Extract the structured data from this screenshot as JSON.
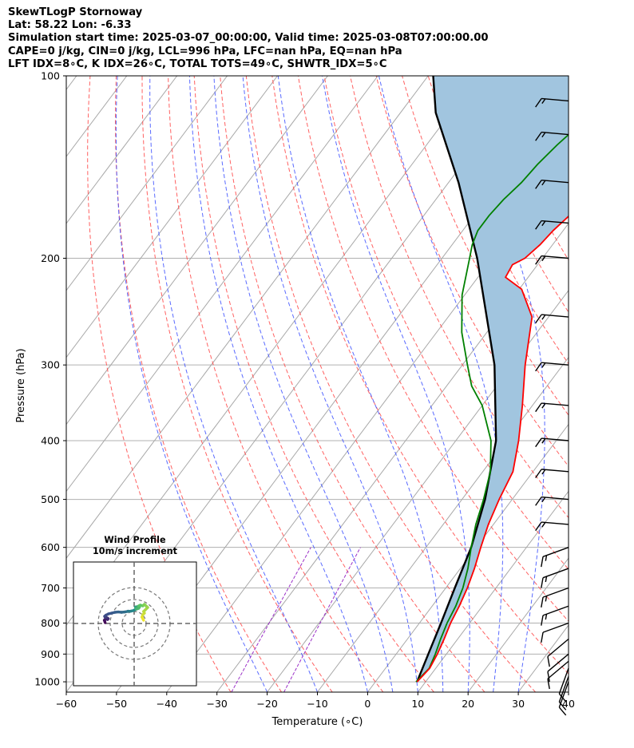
{
  "header": {
    "line1": "SkewTLogP Stornoway",
    "line2": "Lat: 58.22   Lon: -6.33",
    "line3": "Simulation start time: 2025-03-07_00:00:00, Valid time: 2025-03-08T07:00:00.00",
    "line4": "CAPE=0 j/kg, CIN=0 j/kg, LCL=996 hPa, LFC=nan hPa, EQ=nan hPa",
    "line5": "LFT IDX=8∘C, K IDX=26∘C, TOTAL TOTS=49∘C, SHWTR_IDX=5∘C"
  },
  "inset": {
    "title_line1": "Wind Profile",
    "title_line2": "10m/s increment"
  },
  "chart_data": [
    {
      "type": "line",
      "subtype": "skew-T log-P",
      "xlabel": "Temperature (∘C)",
      "ylabel": "Pressure (hPa)",
      "xlim": [
        -60,
        40
      ],
      "ylim": [
        1040,
        100
      ],
      "y_scale": "log",
      "xticks": [
        -60,
        -50,
        -40,
        -30,
        -20,
        -10,
        0,
        10,
        20,
        30,
        40
      ],
      "yticks": [
        1000,
        900,
        800,
        700,
        600,
        500,
        400,
        300,
        200,
        100
      ],
      "grid": true,
      "series": [
        {
          "role": "temperature",
          "color": "#ff0000",
          "points": [
            [
              8.3,
              1000
            ],
            [
              8.8,
              950
            ],
            [
              8.2,
              900
            ],
            [
              7.3,
              850
            ],
            [
              6.2,
              800
            ],
            [
              5.4,
              750
            ],
            [
              4.3,
              700
            ],
            [
              2.8,
              650
            ],
            [
              0.9,
              600
            ],
            [
              -1.0,
              550
            ],
            [
              -2.6,
              500
            ],
            [
              -4.0,
              450
            ],
            [
              -7.5,
              400
            ],
            [
              -12,
              350
            ],
            [
              -17.5,
              300
            ],
            [
              -23.3,
              250
            ],
            [
              -29.5,
              225
            ],
            [
              -34.5,
              215
            ],
            [
              -35,
              205
            ],
            [
              -33.5,
              200
            ],
            [
              -32.5,
              190
            ],
            [
              -32,
              180
            ],
            [
              -31,
              170
            ],
            [
              -29,
              160
            ],
            [
              -27,
              150
            ],
            [
              -24.5,
              140
            ],
            [
              -23,
              130
            ],
            [
              -22,
              120
            ],
            [
              -20.5,
              110
            ],
            [
              -19.5,
              100
            ]
          ]
        },
        {
          "role": "dewpoint",
          "color": "#008000",
          "points": [
            [
              8.1,
              1000
            ],
            [
              8.7,
              950
            ],
            [
              7.8,
              900
            ],
            [
              6.6,
              850
            ],
            [
              5.5,
              800
            ],
            [
              4.7,
              750
            ],
            [
              3.4,
              700
            ],
            [
              1.5,
              650
            ],
            [
              -1.0,
              600
            ],
            [
              -3.5,
              550
            ],
            [
              -5.7,
              500
            ],
            [
              -8.5,
              450
            ],
            [
              -13,
              400
            ],
            [
              -20,
              350
            ],
            [
              -25,
              325
            ],
            [
              -29,
              300
            ],
            [
              -35,
              265
            ],
            [
              -40.5,
              230
            ],
            [
              -44.5,
              200
            ],
            [
              -46,
              190
            ],
            [
              -47,
              180
            ],
            [
              -47,
              170
            ],
            [
              -46.5,
              160
            ],
            [
              -45.5,
              150
            ],
            [
              -45,
              140
            ],
            [
              -44,
              130
            ],
            [
              -42.5,
              120
            ],
            [
              -41,
              110
            ],
            [
              -39.5,
              100
            ]
          ]
        },
        {
          "role": "parcel",
          "color": "#000000",
          "points": [
            [
              8.3,
              1000
            ],
            [
              6.4,
              900
            ],
            [
              4.3,
              800
            ],
            [
              1.8,
              700
            ],
            [
              -1.0,
              600
            ],
            [
              -5.4,
              500
            ],
            [
              -12,
              400
            ],
            [
              -23.6,
              300
            ],
            [
              -43,
              200
            ],
            [
              -58,
              150
            ],
            [
              -73,
              115
            ],
            [
              -79,
              100
            ]
          ]
        }
      ],
      "shaded_region": {
        "between": [
          "temperature",
          "parcel"
        ],
        "color": "#a1c5df"
      },
      "wind_barbs_hPa": [
        1000,
        980,
        950,
        925,
        900,
        850,
        800,
        750,
        700,
        650,
        600,
        550,
        500,
        450,
        400,
        350,
        300,
        250,
        200,
        175,
        150,
        125,
        110
      ],
      "reference_lines": {
        "dry_adiabats_color": "#ff5050",
        "moist_adiabats_color": "#3c50ff",
        "mixing_ratio_color": "#9b30c8",
        "isotherms_color": "#999999"
      }
    },
    {
      "type": "scatter",
      "subtype": "hodograph",
      "title": "Wind Profile 10m/s increment",
      "grid": true,
      "rings": 3,
      "colormap": "viridis",
      "points_u": [
        -6.5,
        -6.8,
        -7.0,
        -6.6,
        -5.8,
        -5.0,
        -4.6,
        -5.2,
        -6.0,
        -6.6,
        -6.8,
        -6.0,
        -4.5,
        -2.5,
        -0.5,
        1.5,
        3.5,
        5.5,
        7.0,
        7.5,
        8.5,
        9.5,
        10.5,
        11.5,
        12.5,
        13.0,
        13.0,
        12.0,
        13.5,
        14.5,
        13.0,
        12.5,
        14.0,
        14.5,
        14.0,
        15.0,
        16.5,
        17.0,
        17.5,
        18.5,
        19.5,
        18.0,
        17.0,
        17.5,
        16.5,
        16.0,
        16.5,
        17.0
      ],
      "points_v": [
        0.5,
        1.5,
        2.0,
        2.5,
        2.8,
        2.5,
        3.0,
        3.5,
        3.7,
        4.1,
        4.5,
        5.2,
        6.0,
        6.5,
        7.0,
        7.2,
        7.0,
        7.2,
        7.5,
        7.7,
        7.6,
        7.8,
        8.0,
        8.5,
        9.0,
        9.2,
        10.1,
        10.3,
        10.6,
        10.3,
        9.6,
        9.0,
        9.5,
        10.3,
        11.0,
        11.5,
        11.0,
        11.5,
        12.0,
        11.0,
        10.0,
        8.5,
        7.5,
        6.5,
        5.5,
        4.0,
        3.0,
        2.0
      ]
    }
  ]
}
